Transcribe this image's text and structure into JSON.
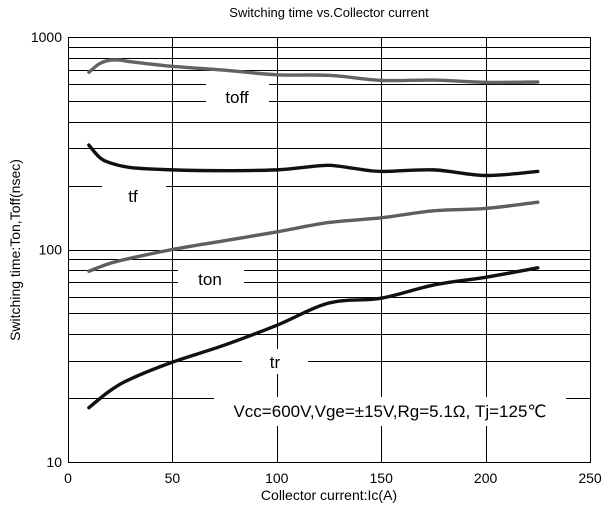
{
  "chart_data": {
    "type": "line",
    "title": "Switching time vs.Collector current",
    "xlabel": "Collector current:Ic(A)",
    "ylabel": "Switching time:Ton,Toff(nsec)",
    "xlim": [
      0,
      250
    ],
    "ylim": [
      10,
      1000
    ],
    "yscale": "log",
    "grid": true,
    "xticks": [
      0,
      50,
      100,
      150,
      200,
      250
    ],
    "yticks": [
      10,
      100,
      1000
    ],
    "annotation": "Vcc=600V,Vge=±15V,Rg=5.1Ω, Tj=125℃",
    "series": [
      {
        "name": "toff",
        "color": "#636363",
        "x": [
          10,
          15,
          20,
          25,
          30,
          50,
          75,
          100,
          125,
          150,
          175,
          200,
          225
        ],
        "y": [
          682,
          748,
          778,
          778,
          765,
          728,
          698,
          664,
          660,
          625,
          627,
          612,
          614
        ]
      },
      {
        "name": "tf",
        "color": "#111111",
        "x": [
          10,
          15,
          20,
          30,
          50,
          75,
          100,
          112,
          125,
          138,
          150,
          175,
          200,
          225
        ],
        "y": [
          310,
          272,
          256,
          243,
          237,
          235,
          237,
          243,
          249,
          240,
          233,
          237,
          223,
          233
        ]
      },
      {
        "name": "ton",
        "color": "#5e5e5e",
        "x": [
          10,
          20,
          30,
          50,
          75,
          100,
          125,
          150,
          175,
          200,
          225
        ],
        "y": [
          79,
          86,
          91,
          100,
          110,
          121,
          134,
          141,
          152,
          156,
          167
        ]
      },
      {
        "name": "tr",
        "color": "#111111",
        "x": [
          10,
          20,
          30,
          50,
          75,
          100,
          125,
          150,
          175,
          200,
          225
        ],
        "y": [
          18,
          21.6,
          24.6,
          29.5,
          35.5,
          44,
          56,
          59,
          68,
          74,
          82
        ]
      }
    ]
  }
}
